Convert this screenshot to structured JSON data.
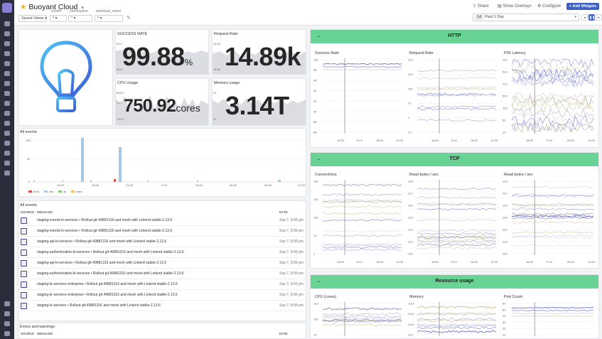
{
  "header": {
    "title": "Buoyant Cloud",
    "saved_views": "Saved Views",
    "template_vars": [
      {
        "name": "cluster",
        "value": "*"
      },
      {
        "name": "namespace",
        "value": "*"
      },
      {
        "name": "workload_name",
        "value": "*"
      }
    ],
    "actions": {
      "share": "Share",
      "overlays": "Show Overlays",
      "configure": "Configure",
      "add_widgets": "+ Add Widgets"
    },
    "time": {
      "badge": "1d",
      "label": "Past 1 Day"
    }
  },
  "stats": {
    "success_rate": {
      "label": "SUCCESS RATE",
      "value": "99.88",
      "unit": "%",
      "axis": [
        "99.9",
        "99.8"
      ]
    },
    "request_rate": {
      "label": "Request Rate",
      "value": "14.89k",
      "axis": [
        "15.2k",
        "14.6k"
      ]
    },
    "cpu_usage": {
      "label": "CPU Usage",
      "value": "750.92",
      "unit": "cores",
      "axis": [
        "805.2",
        "700",
        "731.5"
      ]
    },
    "memory_usage": {
      "label": "Memory usage",
      "value": "3.14T",
      "axis": [
        "3T",
        "3T"
      ]
    }
  },
  "all_events_chart": {
    "title": "All events",
    "y_ticks": [
      "100",
      "50",
      "0"
    ],
    "x_ticks": [
      "15:00",
      "18:00",
      "21:00",
      "Fri 8",
      "03:00",
      "06:00",
      "09:00",
      "12:00"
    ],
    "legend": [
      {
        "label": "error",
        "color": "#d9534f"
      },
      {
        "label": "info",
        "color": "#a7c7e7"
      },
      {
        "label": "ok",
        "color": "#86c77c"
      },
      {
        "label": "warn",
        "color": "#e9c46a"
      }
    ]
  },
  "events_list": {
    "title": "All events",
    "columns": [
      "SOURCE",
      "MESSAGE",
      "DATE"
    ],
    "rows": [
      {
        "message": "staging-events-ki-services • Rollout git-49881316 and mesh with Linkerd stable-2.13.6",
        "date": "Sep 7, 8:09 pm"
      },
      {
        "message": "staging-events-ki-services • Rollout git-49881316 and mesh with Linkerd stable-2.13.6",
        "date": "Sep 7, 8:09 pm"
      },
      {
        "message": "staging-api-ki-services • Rollout git-49881316 and mesh with Linkerd stable-2.13.6",
        "date": "Sep 7, 8:09 pm"
      },
      {
        "message": "staging-authentication-ki-services • Rollout git-49881316 and mesh with Linkerd stable-2.13.6",
        "date": "Sep 7, 8:09 pm"
      },
      {
        "message": "staging-api-ki-services • Rollout git-49881316 and mesh with Linkerd stable-2.13.6",
        "date": "Sep 7, 8:09 pm"
      },
      {
        "message": "staging-authentication-ki-services • Rollout git-49881316 and mesh with Linkerd stable-2.13.6",
        "date": "Sep 7, 8:09 pm"
      },
      {
        "message": "staging-ki-services-enterprise • Rollout git-49881316 and mesh with Linkerd stable-2.13.6",
        "date": "Sep 7, 8:09 pm"
      },
      {
        "message": "staging-ki-services-enterprise • Rollout git-49881316 and mesh with Linkerd stable-2.13.6",
        "date": "Sep 7, 8:09 pm"
      },
      {
        "message": "staging-ki-services • Rollout git-49881316 and mesh with Linkerd stable-2.13.6",
        "date": "Sep 7, 8:09 pm"
      }
    ]
  },
  "errors_warnings": {
    "title": "Errors and warnings",
    "columns": [
      "SOURCE",
      "MESSAGE",
      "DATE"
    ]
  },
  "groups": {
    "http": {
      "title": "HTTP",
      "charts": [
        "Success Rate",
        "Request Rate",
        "P95 Latency"
      ]
    },
    "tcp": {
      "title": "TCP",
      "charts": [
        "Connections",
        "Read bytes / sec",
        "Read bytes / sec"
      ]
    },
    "resource": {
      "title": "Resource usage",
      "charts": [
        "CPU (cores)",
        "Memory",
        "Pod Count"
      ]
    }
  },
  "mini_axes": {
    "x": [
      "18:00",
      "Fri 8",
      "06:00",
      "12:00"
    ],
    "success_rate_y": [
      "100",
      "98",
      "96",
      "94",
      "92",
      "90",
      "88",
      "86"
    ],
    "log_y": [
      "1e4",
      "1e3",
      "100",
      "10",
      "1",
      "0.1"
    ],
    "latency_y": [
      "1e4",
      "5e3",
      "1e3",
      "500",
      "100",
      "50",
      "10"
    ],
    "conn_y": [
      "1e4",
      "1e3",
      "100",
      "10",
      "1"
    ],
    "bytes_y": [
      "1e8",
      "1e7",
      "1e6",
      "1e5",
      "1e4",
      "1e3",
      "100"
    ],
    "cpu_y": [
      "1e3",
      "100",
      "10"
    ],
    "mem_y": [
      "1e12",
      "1e11",
      "1e10",
      "1e9"
    ],
    "pod_y": [
      "60",
      "50",
      "40",
      "30",
      "20",
      "10"
    ]
  }
}
